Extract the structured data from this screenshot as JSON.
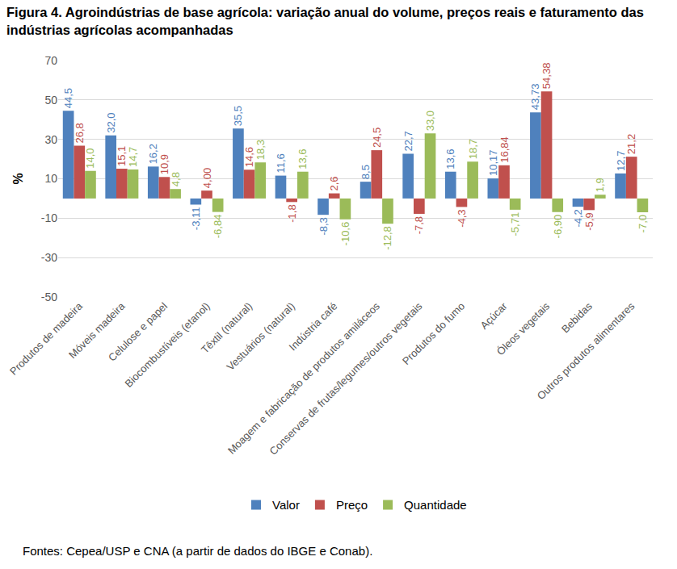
{
  "chart_data": {
    "type": "bar",
    "title": "Figura 4. Agroindústrias de base agrícola: variação anual do volume, preços reais e faturamento das indústrias agrícolas acompanhadas",
    "y_label": "%",
    "source": "Fontes: Cepea/USP e CNA (a partir de dados do IBGE e Conab).",
    "categories": [
      "Produtos de madeira",
      "Móveis madeira",
      "Celulose e papel",
      "Biocombustíveis (etanol)",
      "Têxtil (natural)",
      "Vestuários (natural)",
      "Indústria café",
      "Moagem e fabricação de produtos amiláceos",
      "Conservas de frutas/legumes/outros vegetais",
      "Produtos do fumo",
      "Açúcar",
      "Óleos vegetais",
      "Bebidas",
      "Outros produtos alimentares"
    ],
    "series": [
      {
        "name": "Valor",
        "color": "#4f81bd",
        "values": [
          44.5,
          32.0,
          16.2,
          -3.11,
          35.5,
          11.6,
          -8.3,
          8.5,
          22.7,
          13.6,
          10.17,
          43.73,
          -4.2,
          12.7
        ],
        "value_labels": [
          "44,5",
          "32,0",
          "16,2",
          "-3,11",
          "35,5",
          "11,6",
          "-8,3",
          "8,5",
          "22,7",
          "13,6",
          "10,17",
          "43,73",
          "-4,2",
          "12,7"
        ]
      },
      {
        "name": "Preço",
        "color": "#c0504d",
        "values": [
          26.8,
          15.1,
          10.9,
          4.0,
          14.6,
          -1.8,
          2.6,
          24.5,
          -7.8,
          -4.3,
          16.84,
          54.38,
          -5.9,
          21.2
        ],
        "value_labels": [
          "26,8",
          "15,1",
          "10,9",
          "4,00",
          "14,6",
          "-1,8",
          "2,6",
          "24,5",
          "-7,8",
          "-4,3",
          "16,84",
          "54,38",
          "-5,9",
          "21,2"
        ]
      },
      {
        "name": "Quantidade",
        "color": "#9bbb59",
        "values": [
          14.0,
          14.7,
          4.8,
          -6.84,
          18.3,
          13.6,
          -10.6,
          -12.8,
          33.0,
          18.7,
          -5.71,
          -6.9,
          1.9,
          -7.0
        ],
        "value_labels": [
          "14,0",
          "14,7",
          "4,8",
          "-6,84",
          "18,3",
          "13,6",
          "-10,6",
          "-12,8",
          "33,0",
          "18,7",
          "-5,71",
          "-6,90",
          "1,9",
          "-7,0"
        ]
      }
    ],
    "ylim": [
      -50,
      70
    ],
    "yticks": [
      -50,
      -30,
      -10,
      10,
      30,
      50,
      70
    ],
    "grid": true,
    "legend": "bottom",
    "data_labels": true
  }
}
